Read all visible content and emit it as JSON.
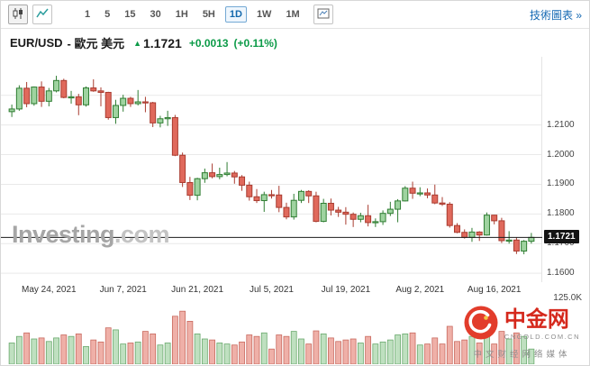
{
  "toolbar": {
    "chart_style_buttons": [
      {
        "name": "candlestick-chart",
        "selected": true
      },
      {
        "name": "line-chart",
        "selected": false
      }
    ],
    "timeframes": [
      "1",
      "5",
      "15",
      "30",
      "1H",
      "5H",
      "1D",
      "1W",
      "1M"
    ],
    "selected_timeframe": "1D",
    "right_link": "技術圖表 »"
  },
  "header": {
    "symbol": "EUR/USD",
    "subtitle": "- 歐元 美元",
    "arrow": "▲",
    "price": "1.1721",
    "change": "+0.0013",
    "change_pct": "(+0.11%)",
    "up_color": "#0c9b48"
  },
  "watermark": {
    "main": "Investing",
    "suffix": ".com"
  },
  "brand": {
    "name": "中金网",
    "domain": "CNGOLD.COM.CN",
    "tagline": "中文财经网络媒体"
  },
  "chart_data": {
    "type": "candlestick",
    "title": "EUR/USD Daily",
    "timeframe": "1D",
    "ylim": [
      1.157,
      1.233
    ],
    "grid_lines": [
      1.22,
      1.21,
      1.2,
      1.19,
      1.18,
      1.17,
      1.16
    ],
    "y_ticks": [
      {
        "value": 1.21,
        "label": "1.2100"
      },
      {
        "value": 1.2,
        "label": "1.2000"
      },
      {
        "value": 1.19,
        "label": "1.1900"
      },
      {
        "value": 1.18,
        "label": "1.1800"
      },
      {
        "value": 1.17,
        "label": "1.1700"
      },
      {
        "value": 1.16,
        "label": "1.1600"
      }
    ],
    "x_ticks": [
      {
        "label": "May 24, 2021",
        "index": 5
      },
      {
        "label": "Jun 7, 2021",
        "index": 15
      },
      {
        "label": "Jun 21, 2021",
        "index": 25
      },
      {
        "label": "Jul 5, 2021",
        "index": 35
      },
      {
        "label": "Jul 19, 2021",
        "index": 45
      },
      {
        "label": "Aug 2, 2021",
        "index": 55
      },
      {
        "label": "Aug 16, 2021",
        "index": 65
      }
    ],
    "current_price": 1.1721,
    "current_price_label": "1.1721",
    "volume_axis_label": "125.0K",
    "volume_max": 125,
    "colors": {
      "up_fill": "#9fd3a0",
      "up_stroke": "#2f7d32",
      "down_fill": "#e0695c",
      "down_stroke": "#a93c30",
      "vol_up_fill": "#bfe0c0",
      "vol_up_stroke": "#6aa96d",
      "vol_down_fill": "#efb0a8",
      "vol_down_stroke": "#c96a5f"
    },
    "candles": [
      [
        "2021-05-17",
        1.2145,
        1.2169,
        1.2127,
        1.2154,
        42
      ],
      [
        "2021-05-18",
        1.2154,
        1.2234,
        1.2148,
        1.2224,
        55
      ],
      [
        "2021-05-19",
        1.2224,
        1.2245,
        1.216,
        1.2172,
        62
      ],
      [
        "2021-05-20",
        1.2172,
        1.223,
        1.2165,
        1.2228,
        50
      ],
      [
        "2021-05-21",
        1.2228,
        1.2247,
        1.2161,
        1.218,
        52
      ],
      [
        "2021-05-24",
        1.218,
        1.2225,
        1.2163,
        1.2215,
        45
      ],
      [
        "2021-05-25",
        1.2215,
        1.2266,
        1.221,
        1.225,
        52
      ],
      [
        "2021-05-26",
        1.225,
        1.2256,
        1.219,
        1.2193,
        58
      ],
      [
        "2021-05-27",
        1.2193,
        1.2215,
        1.2172,
        1.2195,
        55
      ],
      [
        "2021-05-28",
        1.2195,
        1.2205,
        1.2133,
        1.2168,
        60
      ],
      [
        "2021-05-31",
        1.2168,
        1.223,
        1.2162,
        1.2225,
        35
      ],
      [
        "2021-06-01",
        1.2225,
        1.2254,
        1.2212,
        1.2215,
        48
      ],
      [
        "2021-06-02",
        1.2215,
        1.2227,
        1.2163,
        1.221,
        44
      ],
      [
        "2021-06-03",
        1.221,
        1.2212,
        1.2118,
        1.2125,
        72
      ],
      [
        "2021-06-04",
        1.2125,
        1.2185,
        1.2104,
        1.2166,
        68
      ],
      [
        "2021-06-07",
        1.2166,
        1.2202,
        1.2145,
        1.219,
        40
      ],
      [
        "2021-06-08",
        1.219,
        1.2195,
        1.2161,
        1.2172,
        42
      ],
      [
        "2021-06-09",
        1.2172,
        1.2218,
        1.2166,
        1.2178,
        44
      ],
      [
        "2021-06-10",
        1.2178,
        1.2195,
        1.2143,
        1.2175,
        65
      ],
      [
        "2021-06-11",
        1.2175,
        1.2178,
        1.2093,
        1.2107,
        60
      ],
      [
        "2021-06-14",
        1.2107,
        1.2131,
        1.2092,
        1.2121,
        38
      ],
      [
        "2021-06-15",
        1.2121,
        1.2148,
        1.2097,
        1.2125,
        42
      ],
      [
        "2021-06-16",
        1.2125,
        1.2134,
        1.1995,
        1.1998,
        95
      ],
      [
        "2021-06-17",
        1.1998,
        1.2007,
        1.1891,
        1.1906,
        105
      ],
      [
        "2021-06-18",
        1.1906,
        1.1925,
        1.1847,
        1.1863,
        85
      ],
      [
        "2021-06-21",
        1.1863,
        1.1922,
        1.1846,
        1.1919,
        60
      ],
      [
        "2021-06-22",
        1.1919,
        1.1953,
        1.1905,
        1.1939,
        50
      ],
      [
        "2021-06-23",
        1.1939,
        1.197,
        1.192,
        1.1926,
        48
      ],
      [
        "2021-06-24",
        1.1926,
        1.1956,
        1.1917,
        1.1933,
        42
      ],
      [
        "2021-06-25",
        1.1933,
        1.1975,
        1.1927,
        1.1938,
        40
      ],
      [
        "2021-06-28",
        1.1938,
        1.1945,
        1.1902,
        1.1925,
        38
      ],
      [
        "2021-06-29",
        1.1925,
        1.1931,
        1.1878,
        1.1897,
        44
      ],
      [
        "2021-06-30",
        1.1897,
        1.1909,
        1.1845,
        1.1858,
        58
      ],
      [
        "2021-07-01",
        1.1858,
        1.1884,
        1.1837,
        1.1845,
        55
      ],
      [
        "2021-07-02",
        1.1845,
        1.1875,
        1.1807,
        1.1865,
        62
      ],
      [
        "2021-07-05",
        1.1865,
        1.1881,
        1.1852,
        1.1864,
        30
      ],
      [
        "2021-07-06",
        1.1864,
        1.1895,
        1.1806,
        1.1822,
        58
      ],
      [
        "2021-07-07",
        1.1822,
        1.1838,
        1.1782,
        1.179,
        55
      ],
      [
        "2021-07-08",
        1.179,
        1.1868,
        1.1781,
        1.1846,
        65
      ],
      [
        "2021-07-09",
        1.1846,
        1.1881,
        1.1837,
        1.1876,
        50
      ],
      [
        "2021-07-12",
        1.1876,
        1.188,
        1.1837,
        1.1861,
        40
      ],
      [
        "2021-07-13",
        1.1861,
        1.1875,
        1.1772,
        1.1775,
        66
      ],
      [
        "2021-07-14",
        1.1775,
        1.1851,
        1.1772,
        1.1836,
        60
      ],
      [
        "2021-07-15",
        1.1836,
        1.1852,
        1.1795,
        1.1813,
        52
      ],
      [
        "2021-07-16",
        1.1813,
        1.1824,
        1.179,
        1.1806,
        45
      ],
      [
        "2021-07-19",
        1.1806,
        1.1823,
        1.1764,
        1.1799,
        48
      ],
      [
        "2021-07-20",
        1.1799,
        1.1805,
        1.1756,
        1.1782,
        50
      ],
      [
        "2021-07-21",
        1.1782,
        1.1804,
        1.1772,
        1.1794,
        42
      ],
      [
        "2021-07-22",
        1.1794,
        1.1831,
        1.1758,
        1.1771,
        55
      ],
      [
        "2021-07-23",
        1.1771,
        1.1785,
        1.1756,
        1.1774,
        40
      ],
      [
        "2021-07-26",
        1.1774,
        1.1812,
        1.1763,
        1.1802,
        44
      ],
      [
        "2021-07-27",
        1.1802,
        1.1841,
        1.1793,
        1.1816,
        48
      ],
      [
        "2021-07-28",
        1.1816,
        1.185,
        1.1772,
        1.1844,
        58
      ],
      [
        "2021-07-29",
        1.1844,
        1.1894,
        1.1842,
        1.1887,
        60
      ],
      [
        "2021-07-30",
        1.1887,
        1.1909,
        1.1851,
        1.187,
        62
      ],
      [
        "2021-08-02",
        1.187,
        1.189,
        1.186,
        1.1871,
        38
      ],
      [
        "2021-08-03",
        1.1871,
        1.1886,
        1.1853,
        1.1864,
        40
      ],
      [
        "2021-08-04",
        1.1864,
        1.1899,
        1.1833,
        1.1837,
        52
      ],
      [
        "2021-08-05",
        1.1837,
        1.1857,
        1.1827,
        1.1833,
        40
      ],
      [
        "2021-08-06",
        1.1833,
        1.184,
        1.1754,
        1.1761,
        75
      ],
      [
        "2021-08-09",
        1.1761,
        1.1769,
        1.1735,
        1.1738,
        45
      ],
      [
        "2021-08-10",
        1.1738,
        1.1748,
        1.1717,
        1.1721,
        48
      ],
      [
        "2021-08-11",
        1.1721,
        1.1753,
        1.1706,
        1.1739,
        55
      ],
      [
        "2021-08-12",
        1.1739,
        1.1742,
        1.1709,
        1.1729,
        42
      ],
      [
        "2021-08-13",
        1.1729,
        1.1805,
        1.1727,
        1.1796,
        58
      ],
      [
        "2021-08-16",
        1.1796,
        1.1797,
        1.1765,
        1.1777,
        40
      ],
      [
        "2021-08-17",
        1.1777,
        1.1787,
        1.1702,
        1.171,
        65
      ],
      [
        "2021-08-18",
        1.171,
        1.1742,
        1.17,
        1.1712,
        50
      ],
      [
        "2021-08-19",
        1.1712,
        1.1722,
        1.1665,
        1.1675,
        62
      ],
      [
        "2021-08-20",
        1.1675,
        1.1712,
        1.1664,
        1.1708,
        55
      ],
      [
        "2021-08-23",
        1.1708,
        1.1736,
        1.17,
        1.1721,
        30
      ]
    ]
  }
}
